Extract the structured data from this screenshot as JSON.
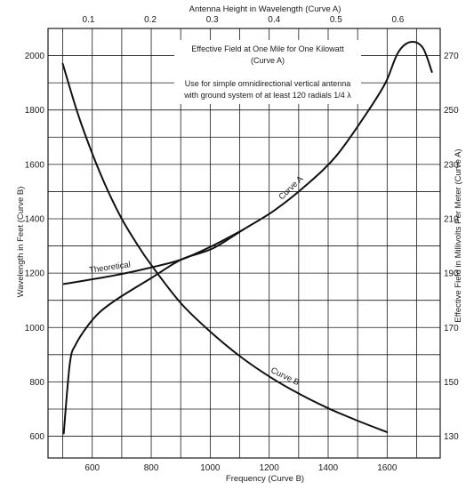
{
  "chart_data": {
    "type": "line",
    "note_lines": [
      "Effective Field at One Mile for One Kilowatt",
      "(Curve A)",
      "Use for simple omnidirectional vertical antenna",
      "with ground system of at least 120 radials 1/4 λ"
    ],
    "axes": {
      "x_bottom": {
        "label": "Frequency (Curve B)",
        "range": [
          450,
          1780
        ],
        "ticks": [
          600,
          800,
          1000,
          1200,
          1400,
          1600
        ],
        "tick_labels": [
          "600",
          "800",
          "1000",
          "1200",
          "1400",
          "1600"
        ]
      },
      "x_top": {
        "label": "Antenna Height in Wavelength  (Curve A)",
        "range": [
          0.0346,
          0.6684
        ],
        "ticks": [
          0.1,
          0.2,
          0.3,
          0.4,
          0.5,
          0.6
        ],
        "tick_labels": [
          "0.1",
          "0.2",
          "0.3",
          "0.4",
          "0.5",
          "0.6"
        ]
      },
      "y_left": {
        "label": "Wavelength in Feet (Curve B)",
        "range": [
          520,
          2100
        ],
        "ticks": [
          600,
          800,
          1000,
          1200,
          1400,
          1600,
          1800,
          2000
        ],
        "tick_labels": [
          "600",
          "800",
          "1000",
          "1200",
          "1400",
          "1600",
          "1800",
          "2000"
        ]
      },
      "y_right": {
        "label": "Effective Field in Millivolts Per Meter (Curve A)",
        "range": [
          122,
          280
        ],
        "ticks": [
          130,
          150,
          170,
          190,
          210,
          230,
          250,
          270
        ],
        "tick_labels": [
          "130",
          "150",
          "170",
          "190",
          "210",
          "230",
          "250",
          "270"
        ]
      }
    },
    "grid": true,
    "series": [
      {
        "name": "Curve A",
        "x_axis": "x_top",
        "y_axis": "y_right",
        "x": [
          0.06,
          0.07,
          0.08,
          0.1,
          0.12,
          0.15,
          0.2,
          0.25,
          0.3,
          0.35,
          0.4,
          0.45,
          0.5,
          0.55,
          0.58,
          0.6,
          0.62,
          0.64,
          0.655
        ],
        "y": [
          131,
          157,
          164,
          171,
          176,
          181,
          188,
          195,
          199,
          206,
          213,
          222,
          233,
          249,
          260,
          271,
          275,
          273,
          264
        ]
      },
      {
        "name": "Theoretical",
        "x_axis": "x_top",
        "y_axis": "y_right",
        "x": [
          0.06,
          0.1,
          0.15,
          0.2,
          0.25,
          0.3,
          0.35
        ],
        "y": [
          186,
          187.5,
          189.5,
          192,
          195,
          200,
          206
        ]
      },
      {
        "name": "Curve B",
        "x_axis": "x_bottom",
        "y_axis": "y_left",
        "x": [
          500,
          550,
          600,
          650,
          700,
          750,
          800,
          900,
          1000,
          1100,
          1200,
          1300,
          1400,
          1500,
          1600
        ],
        "y": [
          1970,
          1790,
          1640,
          1510,
          1400,
          1310,
          1230,
          1090,
          985,
          895,
          820,
          757,
          703,
          657,
          615
        ]
      }
    ],
    "curve_labels": [
      {
        "text": "Curve A",
        "series": "Curve A",
        "at_x": 0.43,
        "offset": -7,
        "angle": -44
      },
      {
        "text": "Theoretical",
        "series": "Theoretical",
        "at_x": 0.135,
        "offset": -7,
        "angle": -8
      },
      {
        "text": "Curve B",
        "series": "Curve B",
        "at_x": 1250,
        "offset": -7,
        "angle": 26
      }
    ]
  }
}
